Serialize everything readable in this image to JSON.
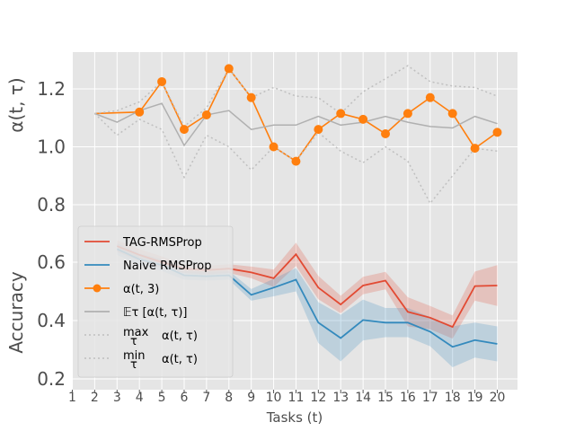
{
  "chart_data": {
    "type": "line",
    "x": [
      2,
      3,
      4,
      5,
      6,
      7,
      8,
      9,
      10,
      11,
      12,
      13,
      14,
      15,
      16,
      17,
      18,
      19,
      20
    ],
    "xticks": [
      1,
      2,
      3,
      4,
      5,
      6,
      7,
      8,
      9,
      10,
      11,
      12,
      13,
      14,
      15,
      16,
      17,
      18,
      19,
      20
    ],
    "xlim": [
      1,
      20
    ],
    "xlabel": "Tasks (t)",
    "top": {
      "ylabel": "α(t, τ)",
      "ylim": [
        0.78,
        1.32
      ],
      "yticks": [
        0.8,
        1.0,
        1.2
      ],
      "series": [
        {
          "name": "α(t, 3)",
          "color": "#ff7f0e",
          "style": "marker",
          "values": [
            1.115,
            null,
            1.12,
            1.225,
            1.06,
            1.11,
            1.27,
            1.17,
            1.0,
            0.95,
            1.06,
            1.115,
            1.095,
            1.045,
            1.115,
            1.17,
            1.115,
            0.995,
            1.05
          ]
        },
        {
          "name": "𝔼τ [α(t, τ)]",
          "color": "#b0b0b0",
          "style": "solid",
          "values": [
            1.115,
            1.085,
            1.125,
            1.15,
            1.005,
            1.11,
            1.125,
            1.06,
            1.075,
            1.075,
            1.105,
            1.075,
            1.085,
            1.105,
            1.085,
            1.07,
            1.065,
            1.105,
            1.08
          ]
        },
        {
          "name": "max τ α(t, τ)",
          "color": "#bfbfbf",
          "style": "dotted",
          "values": [
            1.115,
            1.125,
            1.155,
            1.225,
            1.07,
            1.135,
            1.27,
            1.17,
            1.205,
            1.175,
            1.17,
            1.115,
            1.19,
            1.235,
            1.28,
            1.225,
            1.21,
            1.205,
            1.175
          ]
        },
        {
          "name": "min τ α(t, τ)",
          "color": "#bfbfbf",
          "style": "dotted",
          "values": [
            1.115,
            1.04,
            1.095,
            1.06,
            0.895,
            1.04,
            1.0,
            0.92,
            1.0,
            0.95,
            1.05,
            0.985,
            0.945,
            1.0,
            0.95,
            0.805,
            0.9,
            0.995,
            0.985
          ]
        }
      ]
    },
    "bottom": {
      "ylabel": "Accuracy",
      "ylim": [
        0.19,
        0.72
      ],
      "yticks": [
        0.2,
        0.4,
        0.6
      ],
      "series": [
        {
          "name": "TAG-RMSProp",
          "color": "#e24a33",
          "values": [
            null,
            0.655,
            0.625,
            0.6,
            0.578,
            0.573,
            0.578,
            0.565,
            0.545,
            0.627,
            0.513,
            0.455,
            0.52,
            0.537,
            0.43,
            0.41,
            0.378,
            0.518,
            0.52
          ],
          "band": [
            null,
            0.02,
            0.02,
            0.02,
            0.015,
            0.015,
            0.015,
            0.02,
            0.03,
            0.04,
            0.04,
            0.03,
            0.03,
            0.03,
            0.05,
            0.04,
            0.04,
            0.05,
            0.07
          ]
        },
        {
          "name": "Naive RMSProp",
          "color": "#348abd",
          "values": [
            null,
            0.645,
            0.61,
            0.59,
            0.555,
            0.552,
            0.555,
            0.488,
            0.513,
            0.54,
            0.393,
            0.34,
            0.402,
            0.393,
            0.393,
            0.362,
            0.31,
            0.333,
            0.32
          ],
          "band": [
            null,
            0.02,
            0.02,
            0.02,
            0.015,
            0.015,
            0.015,
            0.02,
            0.03,
            0.04,
            0.07,
            0.08,
            0.07,
            0.05,
            0.05,
            0.05,
            0.07,
            0.06,
            0.06
          ]
        }
      ]
    }
  },
  "legend": {
    "items": [
      {
        "label": "TAG-RMSProp",
        "color": "#e24a33",
        "style": "solid"
      },
      {
        "label": "Naive RMSProp",
        "color": "#348abd",
        "style": "solid"
      },
      {
        "label": "α(t, 3)",
        "color": "#ff7f0e",
        "style": "marker"
      },
      {
        "label": "𝔼τ  [α(t, τ)]",
        "color": "#b0b0b0",
        "style": "solid"
      },
      {
        "label": "max τ  α(t, τ)",
        "color": "#bfbfbf",
        "style": "dotted",
        "op": "max",
        "sub": "τ",
        "rest": "α(t, τ)"
      },
      {
        "label": "min τ  α(t, τ)",
        "color": "#bfbfbf",
        "style": "dotted",
        "op": "min",
        "sub": "τ",
        "rest": "α(t, τ)"
      }
    ]
  }
}
